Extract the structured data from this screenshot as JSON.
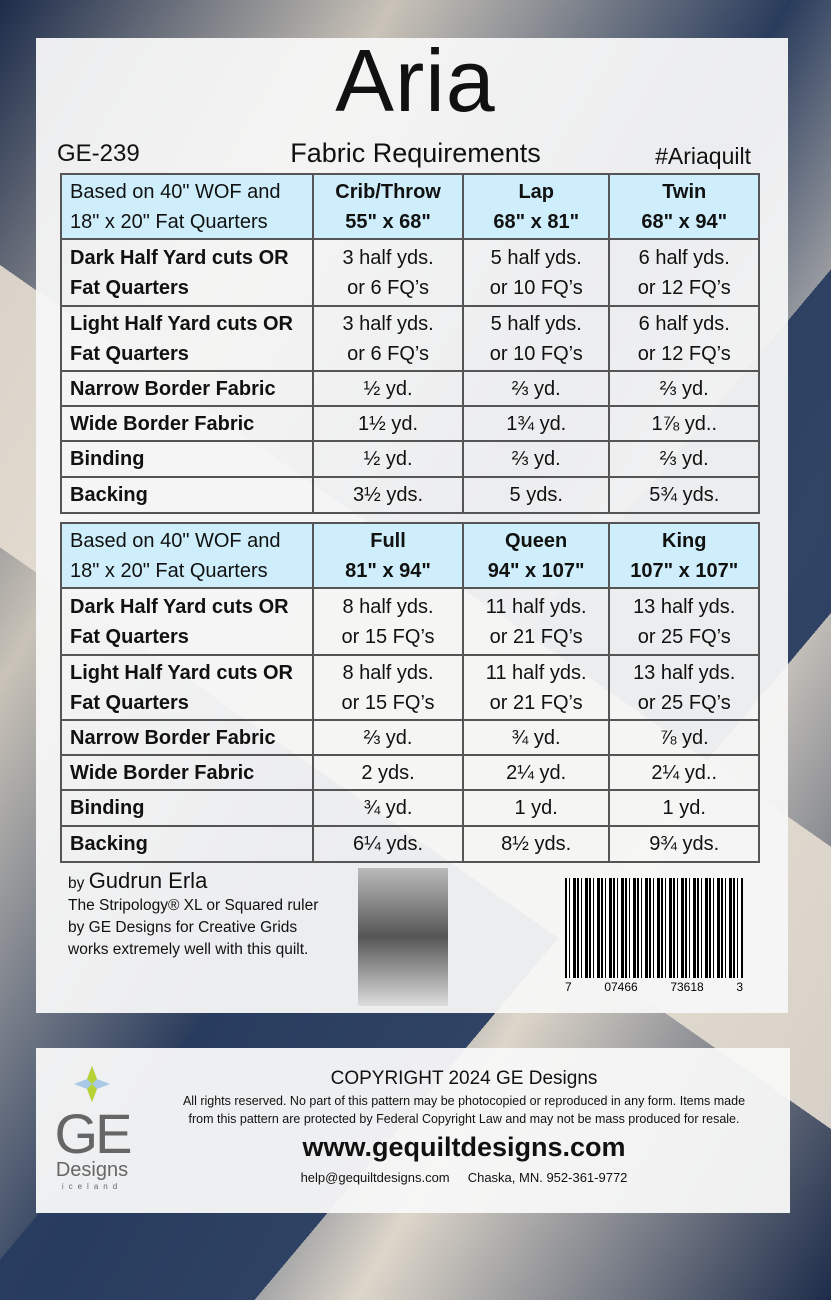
{
  "title": "Aria",
  "code": "GE-239",
  "subtitle": "Fabric Requirements",
  "hashtag": "#Ariaquilt",
  "tables": [
    {
      "header": [
        "Based on 40\" WOF and",
        "18\" x 20\" Fat Quarters"
      ],
      "sizes": [
        [
          "Crib/Throw",
          "55\" x 68\""
        ],
        [
          "Lap",
          "68\" x 81\""
        ],
        [
          "Twin",
          "68\" x 94\""
        ]
      ],
      "rows": [
        {
          "label": [
            "Dark Half Yard cuts OR",
            "Fat Quarters"
          ],
          "values": [
            [
              "3 half yds.",
              "or 6 FQ’s"
            ],
            [
              "5 half yds.",
              "or 10 FQ’s"
            ],
            [
              "6 half yds.",
              "or 12 FQ’s"
            ]
          ]
        },
        {
          "label": [
            "Light Half Yard cuts OR",
            "Fat Quarters"
          ],
          "values": [
            [
              "3 half yds.",
              "or 6 FQ’s"
            ],
            [
              "5 half yds.",
              "or 10 FQ’s"
            ],
            [
              "6 half yds.",
              "or 12 FQ’s"
            ]
          ]
        },
        {
          "label": [
            "Narrow Border Fabric"
          ],
          "values": [
            [
              "½ yd."
            ],
            [
              "⅔ yd."
            ],
            [
              "⅔ yd."
            ]
          ]
        },
        {
          "label": [
            "Wide Border Fabric"
          ],
          "values": [
            [
              "1½ yd."
            ],
            [
              "1¾ yd."
            ],
            [
              "1⅞ yd.."
            ]
          ]
        },
        {
          "label": [
            "Binding"
          ],
          "values": [
            [
              "½ yd."
            ],
            [
              "⅔ yd."
            ],
            [
              "⅔ yd."
            ]
          ]
        },
        {
          "label": [
            "Backing"
          ],
          "values": [
            [
              "3½ yds."
            ],
            [
              "5 yds."
            ],
            [
              "5¾ yds."
            ]
          ]
        }
      ]
    },
    {
      "header": [
        "Based on 40\" WOF and",
        "18\" x 20\" Fat Quarters"
      ],
      "sizes": [
        [
          "Full",
          "81\" x 94\""
        ],
        [
          "Queen",
          "94\" x 107\""
        ],
        [
          "King",
          "107\" x 107\""
        ]
      ],
      "rows": [
        {
          "label": [
            "Dark Half Yard cuts OR",
            "Fat Quarters"
          ],
          "values": [
            [
              "8 half yds.",
              "or 15 FQ’s"
            ],
            [
              "11 half yds.",
              "or 21 FQ’s"
            ],
            [
              "13 half yds.",
              "or 25 FQ’s"
            ]
          ]
        },
        {
          "label": [
            "Light Half Yard cuts OR",
            "Fat Quarters"
          ],
          "values": [
            [
              "8 half yds.",
              "or 15 FQ’s"
            ],
            [
              "11 half yds.",
              "or 21 FQ’s"
            ],
            [
              "13 half yds.",
              "or 25 FQ’s"
            ]
          ]
        },
        {
          "label": [
            "Narrow Border Fabric"
          ],
          "values": [
            [
              "⅔ yd."
            ],
            [
              "¾ yd."
            ],
            [
              "⅞ yd."
            ]
          ]
        },
        {
          "label": [
            "Wide Border Fabric"
          ],
          "values": [
            [
              "2 yds."
            ],
            [
              "2¼ yd."
            ],
            [
              "2¼ yd.."
            ]
          ]
        },
        {
          "label": [
            "Binding"
          ],
          "values": [
            [
              "¾ yd."
            ],
            [
              "1 yd."
            ],
            [
              "1 yd."
            ]
          ]
        },
        {
          "label": [
            "Backing"
          ],
          "values": [
            [
              "6¼ yds."
            ],
            [
              "8½ yds."
            ],
            [
              "9¾ yds."
            ]
          ]
        }
      ]
    }
  ],
  "author": {
    "by": "by",
    "name": "Gudrun Erla",
    "lines": [
      "The Stripology® XL or Squared ruler",
      "by GE Designs for Creative Grids",
      "works extremely well with this quilt."
    ]
  },
  "barcode": [
    "7",
    "07466",
    "73618",
    "3"
  ],
  "footer": {
    "copyright": "COPYRIGHT 2024  GE Designs",
    "rights": [
      "All rights reserved. No part of this pattern may be photocopied or reproduced in any form. Items made",
      "from this pattern are protected by Federal Copyright Law and may not be mass produced for resale."
    ],
    "website": "www.gequiltdesigns.com",
    "contact": "help@gequiltdesigns.com     Chaska, MN. 952-361-9772",
    "logo": {
      "ge": "GE",
      "designs": "Designs",
      "country": "iceland"
    }
  },
  "colors": {
    "header_bg": "#cdeefa",
    "quilt_dark": "#1d2c4a"
  }
}
